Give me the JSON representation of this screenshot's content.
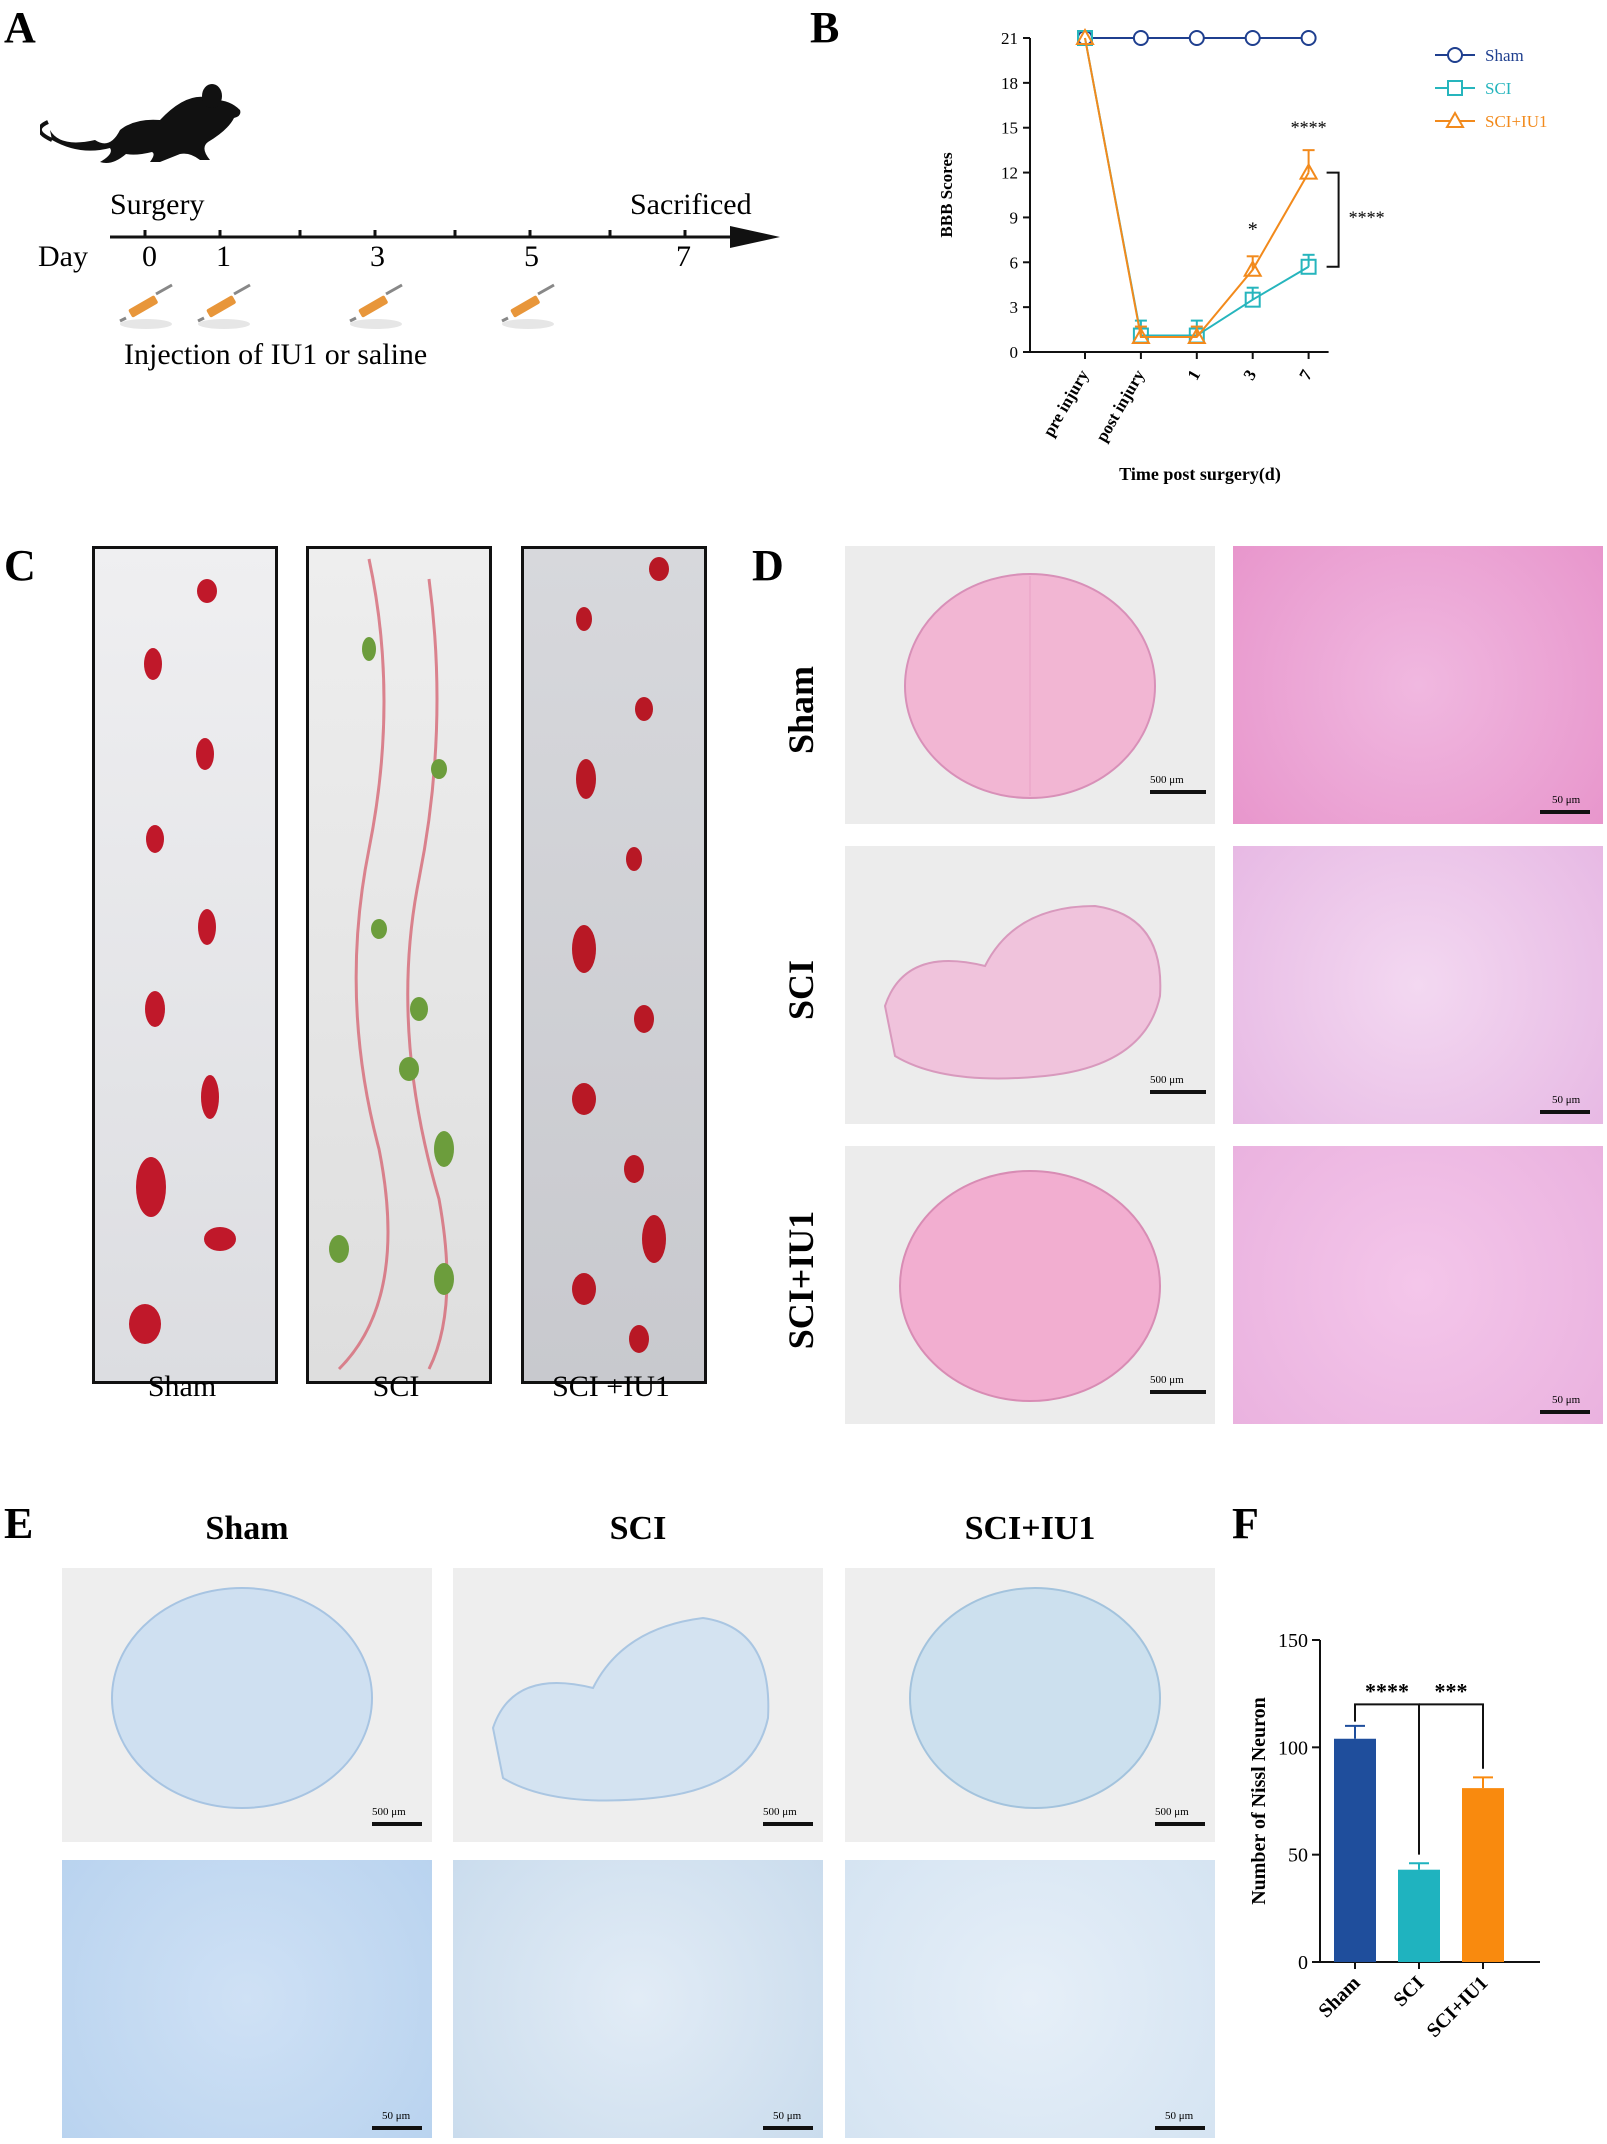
{
  "panels": {
    "A": "A",
    "B": "B",
    "C": "C",
    "D": "D",
    "E": "E",
    "F": "F"
  },
  "panelA": {
    "surgery": "Surgery",
    "sacrificed": "Sacrificed",
    "day_label": "Day",
    "days": [
      "0",
      "1",
      "3",
      "5",
      "7"
    ],
    "injection": "Injection of IU1 or saline"
  },
  "chart_data": [
    {
      "type": "line",
      "panel": "B",
      "ylabel": "BBB Scores",
      "xlabel": "Time post surgery(d)",
      "categories": [
        "pre injury",
        "post injury",
        "1",
        "3",
        "7"
      ],
      "yticks": [
        "0",
        "3",
        "6",
        "9",
        "12",
        "15",
        "18",
        "21"
      ],
      "ylim": [
        0,
        21
      ],
      "series": [
        {
          "name": "Sham",
          "color": "#1f3f8f",
          "marker": "circle",
          "values": [
            21,
            21,
            21,
            21,
            21
          ],
          "err": [
            0,
            0,
            0,
            0,
            0
          ]
        },
        {
          "name": "SCI",
          "color": "#26b5bd",
          "marker": "square",
          "values": [
            21,
            1.1,
            1.1,
            3.5,
            5.7
          ],
          "err": [
            0,
            1.0,
            1.0,
            0.8,
            0.8
          ]
        },
        {
          "name": "SCI+IU1",
          "color": "#f28a1c",
          "marker": "triangle",
          "values": [
            21,
            1.0,
            1.0,
            5.5,
            12
          ],
          "err": [
            0,
            0.7,
            0.7,
            0.9,
            1.5
          ]
        }
      ],
      "annotations": [
        {
          "text": "*",
          "at": "3"
        },
        {
          "text": "****",
          "at": "7"
        },
        {
          "text": "****",
          "at": "bracket"
        }
      ],
      "legend": "top-right"
    },
    {
      "type": "bar",
      "panel": "F",
      "ylabel": "Number of Nissl Neuron",
      "categories": [
        "Sham",
        "SCI",
        "SCI+IU1"
      ],
      "values": [
        104,
        43,
        81
      ],
      "err": [
        6,
        3,
        5
      ],
      "colors": [
        "#1f4e9c",
        "#1fb3bf",
        "#f98a0e"
      ],
      "yticks": [
        "0",
        "50",
        "100",
        "150"
      ],
      "ylim": [
        0,
        150
      ],
      "annotations": [
        "****",
        "***"
      ]
    }
  ],
  "panelC": {
    "labels": [
      "Sham",
      "SCI",
      "SCI +IU1"
    ]
  },
  "panelD": {
    "rows": [
      "Sham",
      "SCI",
      "SCI+IU1"
    ],
    "scale_low": "500 μm",
    "scale_high": "50 μm"
  },
  "panelE": {
    "cols": [
      "Sham",
      "SCI",
      "SCI+IU1"
    ],
    "scale_low": "500 μm",
    "scale_high": "50 μm"
  }
}
